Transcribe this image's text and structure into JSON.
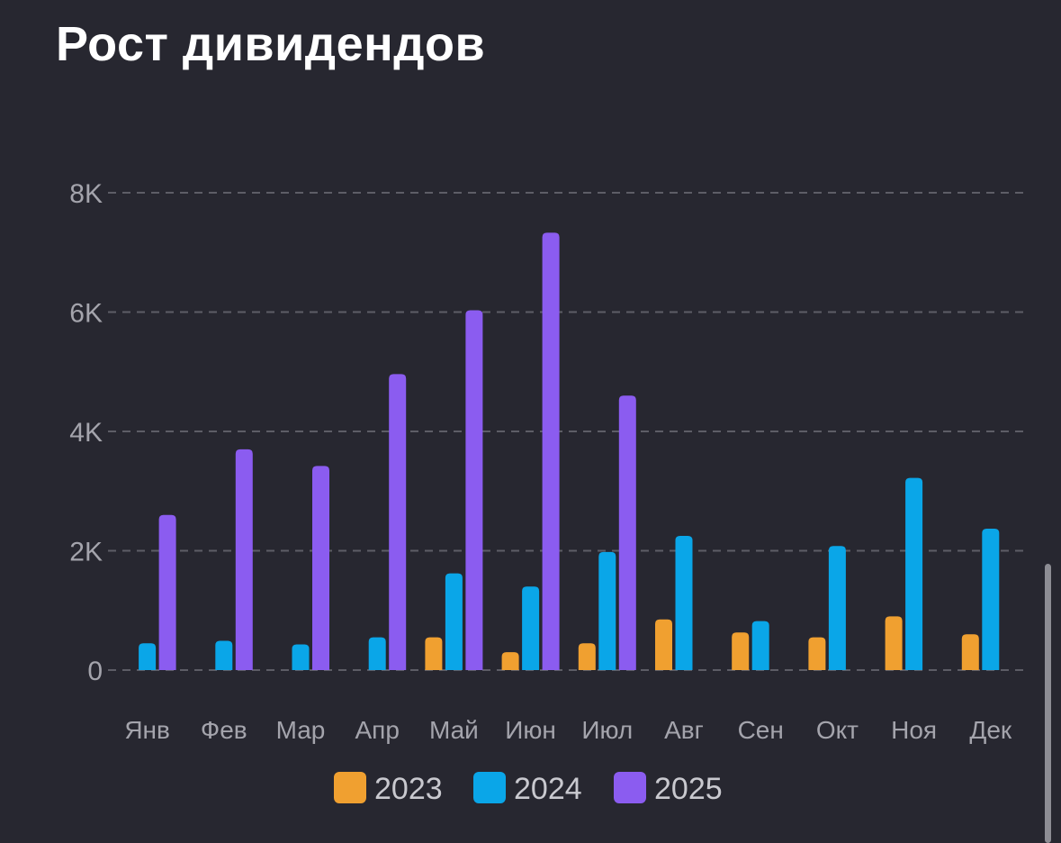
{
  "colors": {
    "background": "#272730",
    "grid": "#5d5d66",
    "tick_text": "#a4a4ac",
    "legend_text": "#c9c9cf",
    "title_text": "#ffffff"
  },
  "chart_data": {
    "type": "bar",
    "title": "Рост дивидендов",
    "categories": [
      "Янв",
      "Фев",
      "Мар",
      "Апр",
      "Май",
      "Июн",
      "Июл",
      "Авг",
      "Сен",
      "Окт",
      "Ноя",
      "Дек"
    ],
    "series": [
      {
        "name": "2023",
        "color": "#f0a030",
        "values": [
          null,
          null,
          null,
          null,
          550,
          300,
          450,
          850,
          630,
          550,
          900,
          600
        ]
      },
      {
        "name": "2024",
        "color": "#0aa6e8",
        "values": [
          450,
          490,
          430,
          550,
          1620,
          1400,
          1980,
          2250,
          820,
          2080,
          3220,
          2370
        ]
      },
      {
        "name": "2025",
        "color": "#8b5cf0",
        "values": [
          2600,
          3700,
          3420,
          4960,
          6030,
          7330,
          4600,
          null,
          null,
          null,
          null,
          null
        ]
      }
    ],
    "yticks": [
      {
        "value": 0,
        "label": "0"
      },
      {
        "value": 2000,
        "label": "2K"
      },
      {
        "value": 4000,
        "label": "4K"
      },
      {
        "value": 6000,
        "label": "6K"
      },
      {
        "value": 8000,
        "label": "8K"
      }
    ],
    "ylim": [
      0,
      8000
    ],
    "grid": true,
    "legend_position": "bottom-center",
    "xlabel": "",
    "ylabel": ""
  }
}
